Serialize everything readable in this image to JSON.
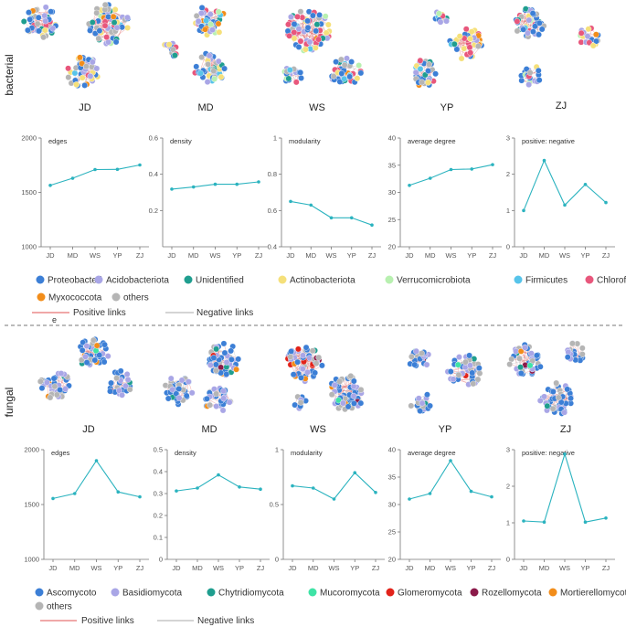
{
  "colors": {
    "series": "#2bb3bf",
    "axis": "#777777",
    "separator": "#777777",
    "positive_link": "#e05050",
    "negative_link": "#aaaaaa"
  },
  "bacterial": {
    "label": "bacterial",
    "sites": [
      "JD",
      "MD",
      "WS",
      "YP",
      "ZJ"
    ],
    "legend": [
      {
        "name": "Proteobacteri",
        "color": "#3c7fd6"
      },
      {
        "name": "Acidobacteriota",
        "color": "#a9a6e6"
      },
      {
        "name": "Unidentified",
        "color": "#1f9e8f"
      },
      {
        "name": "Actinobacteriota",
        "color": "#f5e07a"
      },
      {
        "name": "Verrucomicrobiota",
        "color": "#b8f0b0"
      },
      {
        "name": "Firmicutes",
        "color": "#57c4ea"
      },
      {
        "name": "Chloroflexi",
        "color": "#e8577c"
      },
      {
        "name": "Myxococcota",
        "color": "#f28d1a"
      },
      {
        "name": "others",
        "color": "#b5b5b5"
      }
    ],
    "positive_label": "Positive links",
    "negative_label": "Negative links",
    "mini_label": "e"
  },
  "fungal": {
    "label": "fungal",
    "sites": [
      "JD",
      "MD",
      "WS",
      "YP",
      "ZJ"
    ],
    "legend": [
      {
        "name": "Ascomycoto",
        "color": "#3c7fd6"
      },
      {
        "name": "Basidiomycota",
        "color": "#a9a6e6"
      },
      {
        "name": "Chytridiomycota",
        "color": "#1f9e8f"
      },
      {
        "name": "Mucoromycota",
        "color": "#3fe3a6"
      },
      {
        "name": "Glomeromycota",
        "color": "#e2231a"
      },
      {
        "name": "Rozellomycota",
        "color": "#8b1a4a"
      },
      {
        "name": "Mortierellomycota",
        "color": "#f28d1a"
      },
      {
        "name": "others",
        "color": "#b5b5b5"
      }
    ],
    "positive_label": "Positive links",
    "negative_label": "Negative links"
  },
  "chart_data": [
    {
      "id": "b-edges",
      "type": "line",
      "group": "bacterial",
      "title": "edges",
      "x": [
        "JD",
        "MD",
        "WS",
        "YP",
        "ZJ"
      ],
      "values": [
        1565,
        1630,
        1710,
        1712,
        1752
      ],
      "ylim": [
        1000,
        2000
      ],
      "yticks": [
        1000,
        1500,
        2000
      ]
    },
    {
      "id": "b-density",
      "type": "line",
      "group": "bacterial",
      "title": "density",
      "x": [
        "JD",
        "MD",
        "WS",
        "YP",
        "ZJ"
      ],
      "values": [
        0.318,
        0.33,
        0.345,
        0.345,
        0.358
      ],
      "ylim": [
        0,
        0.6
      ],
      "yticks": [
        0.2,
        0.4,
        0.6
      ]
    },
    {
      "id": "b-modularity",
      "type": "line",
      "group": "bacterial",
      "title": "modularity",
      "x": [
        "JD",
        "MD",
        "WS",
        "YP",
        "ZJ"
      ],
      "values": [
        0.65,
        0.63,
        0.56,
        0.56,
        0.52
      ],
      "ylim": [
        0.4,
        1
      ],
      "yticks": [
        0.4,
        0.6,
        0.8,
        1
      ]
    },
    {
      "id": "b-degree",
      "type": "line",
      "group": "bacterial",
      "title": "average degree",
      "x": [
        "JD",
        "MD",
        "WS",
        "YP",
        "ZJ"
      ],
      "values": [
        31.3,
        32.6,
        34.2,
        34.3,
        35.1
      ],
      "ylim": [
        20,
        40
      ],
      "yticks": [
        20,
        25,
        30,
        35,
        40
      ]
    },
    {
      "id": "b-posneg",
      "type": "line",
      "group": "bacterial",
      "title": "positive: negative",
      "x": [
        "JD",
        "MD",
        "WS",
        "YP",
        "ZJ"
      ],
      "values": [
        1.0,
        2.38,
        1.15,
        1.72,
        1.22
      ],
      "ylim": [
        0,
        3
      ],
      "yticks": [
        0,
        1,
        2,
        3
      ]
    },
    {
      "id": "f-edges",
      "type": "line",
      "group": "fungal",
      "title": "edges",
      "x": [
        "JD",
        "MD",
        "WS",
        "YP",
        "ZJ"
      ],
      "values": [
        1555,
        1600,
        1900,
        1615,
        1570
      ],
      "ylim": [
        1000,
        2000
      ],
      "yticks": [
        1000,
        1500,
        2000
      ]
    },
    {
      "id": "f-density",
      "type": "line",
      "group": "fungal",
      "title": "density",
      "x": [
        "JD",
        "MD",
        "WS",
        "YP",
        "ZJ"
      ],
      "values": [
        0.312,
        0.325,
        0.385,
        0.33,
        0.32
      ],
      "ylim": [
        0,
        0.5
      ],
      "yticks": [
        0,
        0.1,
        0.2,
        0.3,
        0.4,
        0.5
      ]
    },
    {
      "id": "f-modularity",
      "type": "line",
      "group": "fungal",
      "title": "modularity",
      "x": [
        "JD",
        "MD",
        "WS",
        "YP",
        "ZJ"
      ],
      "values": [
        0.67,
        0.65,
        0.55,
        0.79,
        0.61
      ],
      "ylim": [
        0,
        1
      ],
      "yticks": [
        0,
        0.5,
        1
      ]
    },
    {
      "id": "f-degree",
      "type": "line",
      "group": "fungal",
      "title": "average degree",
      "x": [
        "JD",
        "MD",
        "WS",
        "YP",
        "ZJ"
      ],
      "values": [
        31.0,
        32.0,
        38.0,
        32.4,
        31.4
      ],
      "ylim": [
        20,
        40
      ],
      "yticks": [
        20,
        25,
        30,
        35,
        40
      ]
    },
    {
      "id": "f-posneg",
      "type": "line",
      "group": "fungal",
      "title": "positive: negative",
      "x": [
        "JD",
        "MD",
        "WS",
        "YP",
        "ZJ"
      ],
      "values": [
        1.05,
        1.02,
        2.88,
        1.02,
        1.13
      ],
      "ylim": [
        0,
        3
      ],
      "yticks": [
        0,
        1,
        2,
        3
      ]
    }
  ]
}
